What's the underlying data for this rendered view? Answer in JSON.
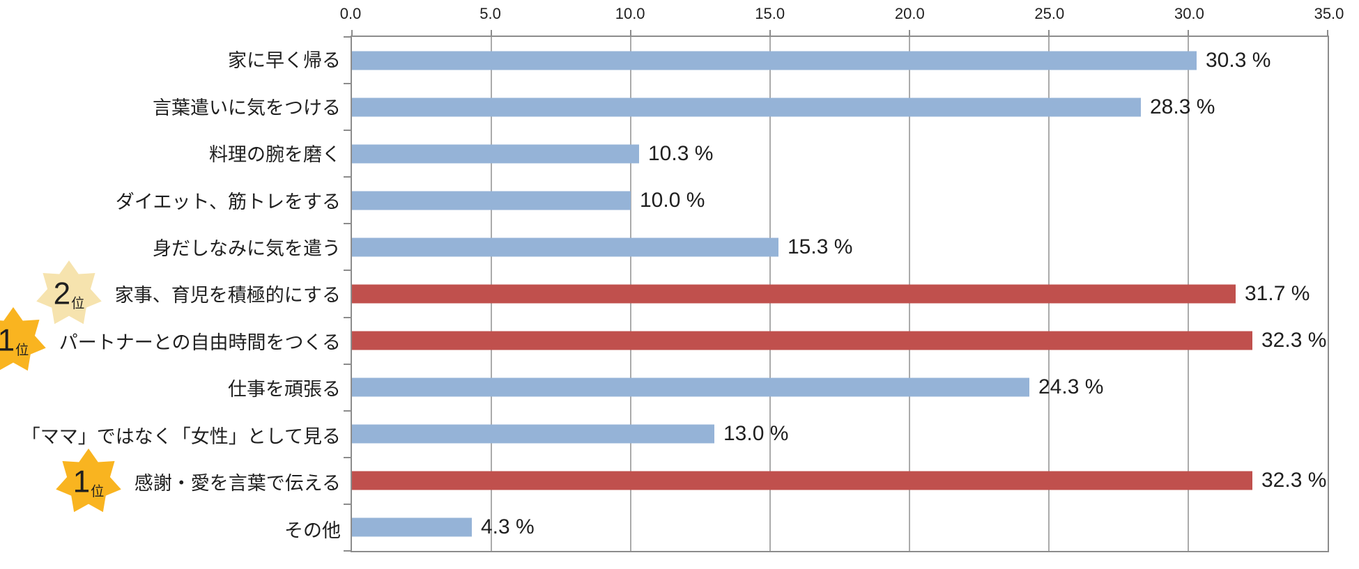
{
  "chart_data": {
    "type": "bar",
    "orientation": "horizontal",
    "title": "",
    "xlabel": "",
    "ylabel": "",
    "xlim": [
      0,
      35
    ],
    "xticks": [
      "0.0",
      "5.0",
      "10.0",
      "15.0",
      "20.0",
      "25.0",
      "30.0",
      "35.0"
    ],
    "grid": true,
    "axis_position": "top",
    "categories": [
      "家に早く帰る",
      "言葉遣いに気をつける",
      "料理の腕を磨く",
      "ダイエット、筋トレをする",
      "身だしなみに気を遣う",
      "家事、育児を積極的にする",
      "パートナーとの自由時間をつくる",
      "仕事を頑張る",
      "「ママ」ではなく「女性」として見る",
      "感謝・愛を言葉で伝える",
      "その他"
    ],
    "values": [
      30.3,
      28.3,
      10.3,
      10.0,
      15.3,
      31.7,
      32.3,
      24.3,
      13.0,
      32.3,
      4.3
    ],
    "value_labels": [
      "30.3 %",
      "28.3 %",
      "10.3 %",
      "10.0 %",
      "15.3 %",
      "31.7 %",
      "32.3 %",
      "24.3 %",
      "13.0 %",
      "32.3 %",
      "4.3 %"
    ],
    "highlighted_rows": [
      5,
      6,
      9
    ],
    "badges": [
      {
        "row": 5,
        "rank": "2",
        "unit": "位",
        "variant": "pale"
      },
      {
        "row": 6,
        "rank": "1",
        "unit": "位",
        "variant": "gold"
      },
      {
        "row": 9,
        "rank": "1",
        "unit": "位",
        "variant": "gold"
      }
    ],
    "colors": {
      "bar": "#95B3D7",
      "bar_highlight": "#C0504D",
      "badge_gold": "#F9B420",
      "badge_pale": "#F6E3AE",
      "gridline": "#ABABAB",
      "plot_border": "#8C8C8C",
      "text": "#1F1F1F"
    }
  }
}
